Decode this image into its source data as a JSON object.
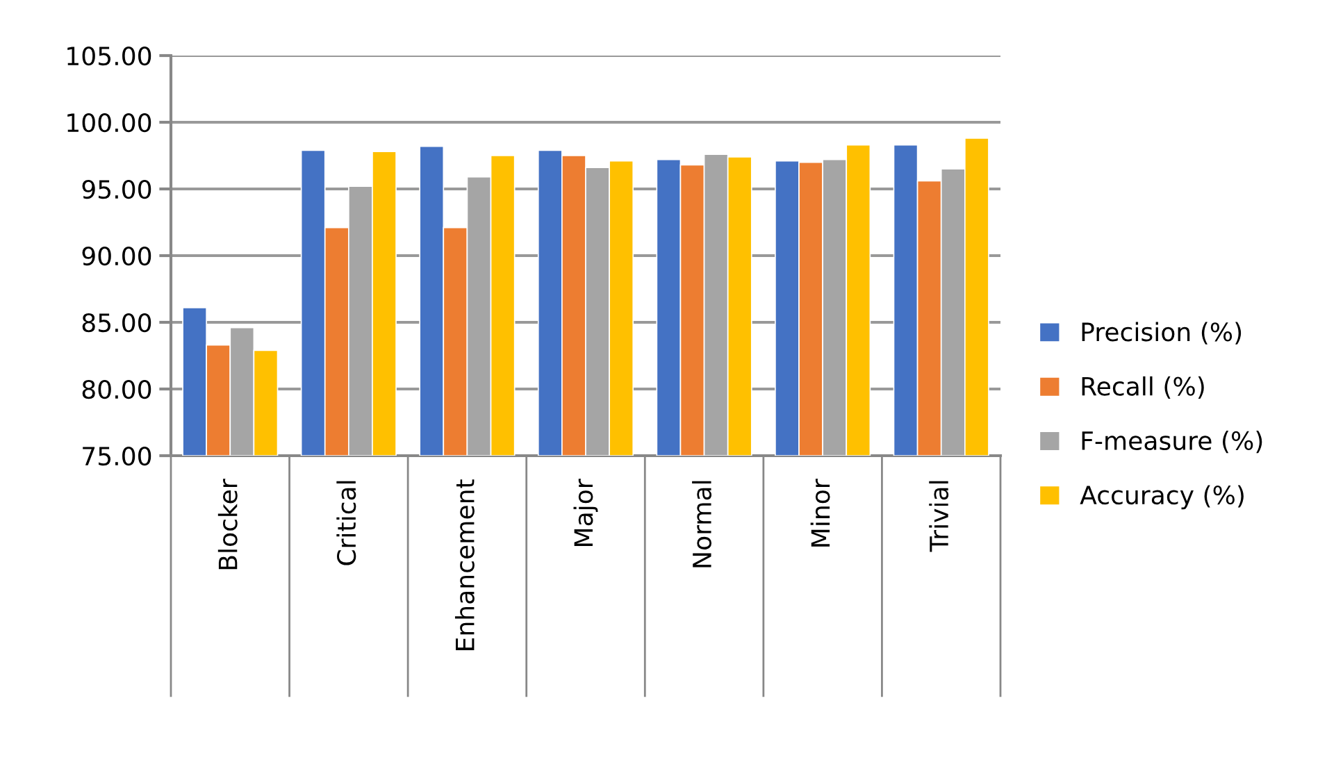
{
  "chart_data": {
    "type": "bar",
    "categories": [
      "Blocker",
      "Critical",
      "Enhancement",
      "Major",
      "Normal",
      "Minor",
      "Trivial"
    ],
    "series": [
      {
        "name": "Precision (%)",
        "color": "#4472c4",
        "values": [
          86.1,
          97.9,
          98.2,
          97.9,
          97.2,
          97.1,
          98.3
        ]
      },
      {
        "name": "Recall (%)",
        "color": "#ed7d31",
        "values": [
          83.3,
          92.1,
          92.1,
          97.5,
          96.8,
          97.0,
          95.6
        ]
      },
      {
        "name": "F-measure (%)",
        "color": "#a5a5a5",
        "values": [
          84.6,
          95.2,
          95.9,
          96.6,
          97.6,
          97.2,
          96.5
        ]
      },
      {
        "name": "Accuracy (%)",
        "color": "#ffc000",
        "values": [
          82.9,
          97.8,
          97.5,
          97.1,
          97.4,
          98.3,
          98.8
        ]
      }
    ],
    "ylim": [
      75,
      105
    ],
    "yticks": [
      {
        "value": 75,
        "label": "75.00"
      },
      {
        "value": 80,
        "label": "80.00"
      },
      {
        "value": 85,
        "label": "85.00"
      },
      {
        "value": 90,
        "label": "90.00"
      },
      {
        "value": 95,
        "label": "95.00"
      },
      {
        "value": 100,
        "label": "100.00"
      },
      {
        "value": 105,
        "label": "105.00"
      }
    ],
    "grid": "y",
    "legend": "right"
  }
}
